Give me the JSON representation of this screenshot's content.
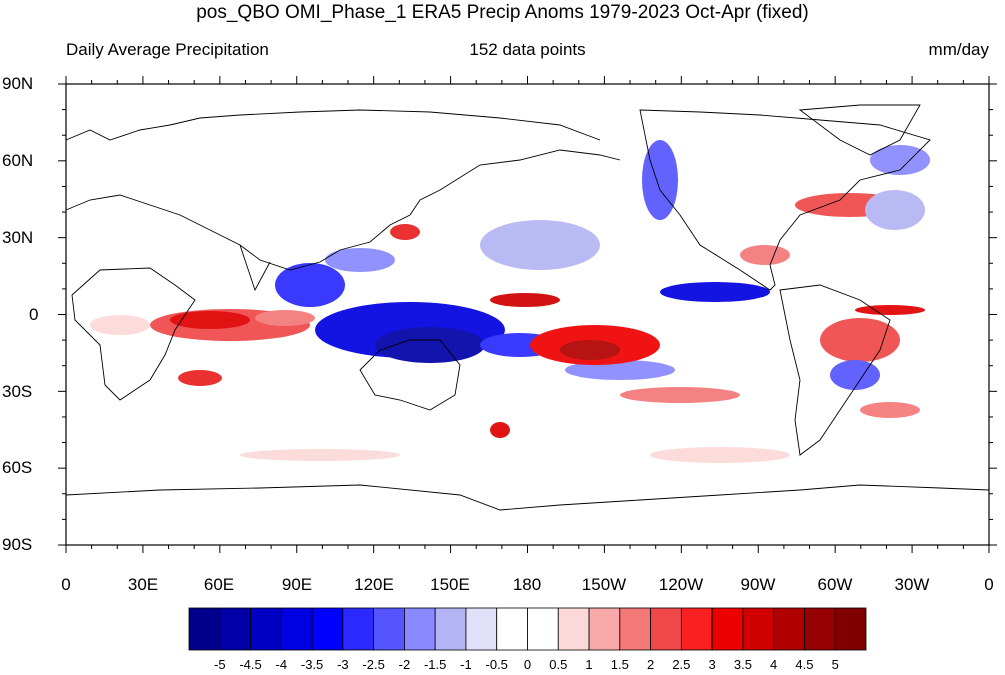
{
  "header": {
    "title": "pos_QBO OMI_Phase_1 ERA5 Precip Anoms 1979-2023 Oct-Apr (fixed)",
    "left": "Daily Average Precipitation",
    "center": "152 data points",
    "right": "mm/day"
  },
  "axes": {
    "lat_labels": [
      "90N",
      "60N",
      "30N",
      "0",
      "30S",
      "60S",
      "90S"
    ],
    "lon_labels": [
      "0",
      "30E",
      "60E",
      "90E",
      "120E",
      "150E",
      "180",
      "150W",
      "120W",
      "90W",
      "60W",
      "30W",
      "0"
    ]
  },
  "colorbar": {
    "labels": [
      "-5",
      "-4.5",
      "-4",
      "-3.5",
      "-3",
      "-2.5",
      "-2",
      "-1.5",
      "-1",
      "-0.5",
      "0",
      "0.5",
      "1",
      "1.5",
      "2",
      "2.5",
      "3",
      "3.5",
      "4",
      "4.5",
      "5"
    ],
    "colors": [
      "#00008c",
      "#0000a8",
      "#0000c4",
      "#0000e0",
      "#0000ff",
      "#2a2aff",
      "#5555ff",
      "#8888ff",
      "#b4b4f4",
      "#e0e0f8",
      "#ffffff",
      "#ffffff",
      "#fcd8d8",
      "#f8a8a8",
      "#f47878",
      "#f04848",
      "#f82020",
      "#ee0000",
      "#d00000",
      "#b00000",
      "#960000",
      "#800000"
    ]
  },
  "map": {
    "projection": "cylindrical-equidistant",
    "land_outline_color": "#000000",
    "positive_color": "#e01010",
    "negative_color": "#1010d8"
  }
}
